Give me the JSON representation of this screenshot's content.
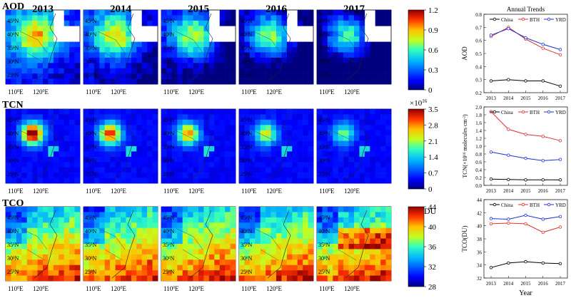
{
  "years": [
    "2013",
    "2014",
    "2015",
    "2016",
    "2017"
  ],
  "rows": [
    {
      "label": "AOD",
      "colorbar": {
        "ticks": [
          "1.2",
          "0.9",
          "0.6",
          "0.3",
          "0"
        ],
        "unit": ""
      }
    },
    {
      "label": "TCN",
      "colorbar": {
        "ticks": [
          "3.5",
          "2.8",
          "2.1",
          "1.4",
          "0.7",
          "0"
        ],
        "unit": "×10",
        "unit_exp": "16"
      }
    },
    {
      "label": "TCO",
      "colorbar": {
        "ticks": [
          "44",
          "40",
          "36",
          "32",
          "28"
        ],
        "unit": "DU"
      }
    }
  ],
  "map_axes": {
    "lat_labels": [
      "45",
      "40",
      "35",
      "30",
      "25"
    ],
    "lat_suffix": "N",
    "lon_labels": [
      "110",
      "120"
    ],
    "lon_suffix": "E",
    "degree": "0"
  },
  "chart_data": [
    {
      "type": "line",
      "title": "Annual Trends",
      "xlabel": "",
      "ylabel": "AOD",
      "categories": [
        "2013",
        "2014",
        "2015",
        "2016",
        "2017"
      ],
      "ylim": [
        0.2,
        0.8
      ],
      "yticks": [
        "0.8",
        "0.7",
        "0.6",
        "0.5",
        "0.4",
        "0.3",
        "0.2"
      ],
      "series": [
        {
          "name": "China",
          "color": "#000000",
          "values": [
            0.29,
            0.3,
            0.29,
            0.29,
            0.25
          ]
        },
        {
          "name": "BTH",
          "color": "#e03030",
          "values": [
            0.63,
            0.7,
            0.61,
            0.54,
            0.49
          ]
        },
        {
          "name": "YRD",
          "color": "#2030d0",
          "values": [
            0.64,
            0.69,
            0.62,
            0.57,
            0.53
          ]
        }
      ]
    },
    {
      "type": "line",
      "title": "",
      "xlabel": "",
      "ylabel": "TCN(×10",
      "ylabel_exp": "16",
      "ylabel_rest": " molecules cm",
      "ylabel_exp2": "-2",
      "ylabel_end": ")",
      "categories": [
        "2013",
        "2014",
        "2015",
        "2016",
        "2017"
      ],
      "ylim": [
        0,
        2.0
      ],
      "yticks": [
        "2.0",
        "1.8",
        "1.6",
        "1.4",
        "1.2",
        "1.0",
        "0.8",
        "0.6",
        "0.4",
        "0.2",
        "0.0"
      ],
      "series": [
        {
          "name": "China",
          "color": "#000000",
          "values": [
            0.16,
            0.15,
            0.14,
            0.14,
            0.14
          ]
        },
        {
          "name": "BTH",
          "color": "#e03030",
          "values": [
            1.88,
            1.43,
            1.3,
            1.25,
            1.14
          ]
        },
        {
          "name": "YRD",
          "color": "#2030d0",
          "values": [
            0.85,
            0.77,
            0.69,
            0.63,
            0.66
          ]
        }
      ]
    },
    {
      "type": "line",
      "title": "",
      "xlabel": "Year",
      "ylabel": "TCO(DU)",
      "categories": [
        "2013",
        "2014",
        "2015",
        "2016",
        "2017"
      ],
      "ylim": [
        32,
        44
      ],
      "yticks": [
        "44",
        "42",
        "40",
        "38",
        "36",
        "34",
        "32"
      ],
      "series": [
        {
          "name": "China",
          "color": "#000000",
          "values": [
            33.6,
            34.3,
            34.5,
            34.3,
            34.2
          ]
        },
        {
          "name": "BTH",
          "color": "#e03030",
          "values": [
            40.3,
            40.4,
            40.3,
            39.0,
            39.8
          ]
        },
        {
          "name": "YRD",
          "color": "#2030d0",
          "values": [
            41.1,
            41.0,
            41.6,
            41.0,
            41.4
          ]
        }
      ]
    }
  ],
  "colors": {
    "aod_scale": [
      "#00007f",
      "#0000ff",
      "#0080ff",
      "#00e0e0",
      "#40ff80",
      "#c0ff00",
      "#ffc000",
      "#ff4000",
      "#a00000"
    ],
    "tcn_scale": [
      "#00007f",
      "#0000ff",
      "#0080ff",
      "#00e0e0",
      "#40ff80",
      "#c0ff00",
      "#ffc000",
      "#ff4000",
      "#a00000"
    ],
    "tco_scale": [
      "#00007f",
      "#0000ff",
      "#0080ff",
      "#00e0e0",
      "#40ff80",
      "#c0ff00",
      "#ffc000",
      "#ff4000",
      "#a00000"
    ]
  }
}
